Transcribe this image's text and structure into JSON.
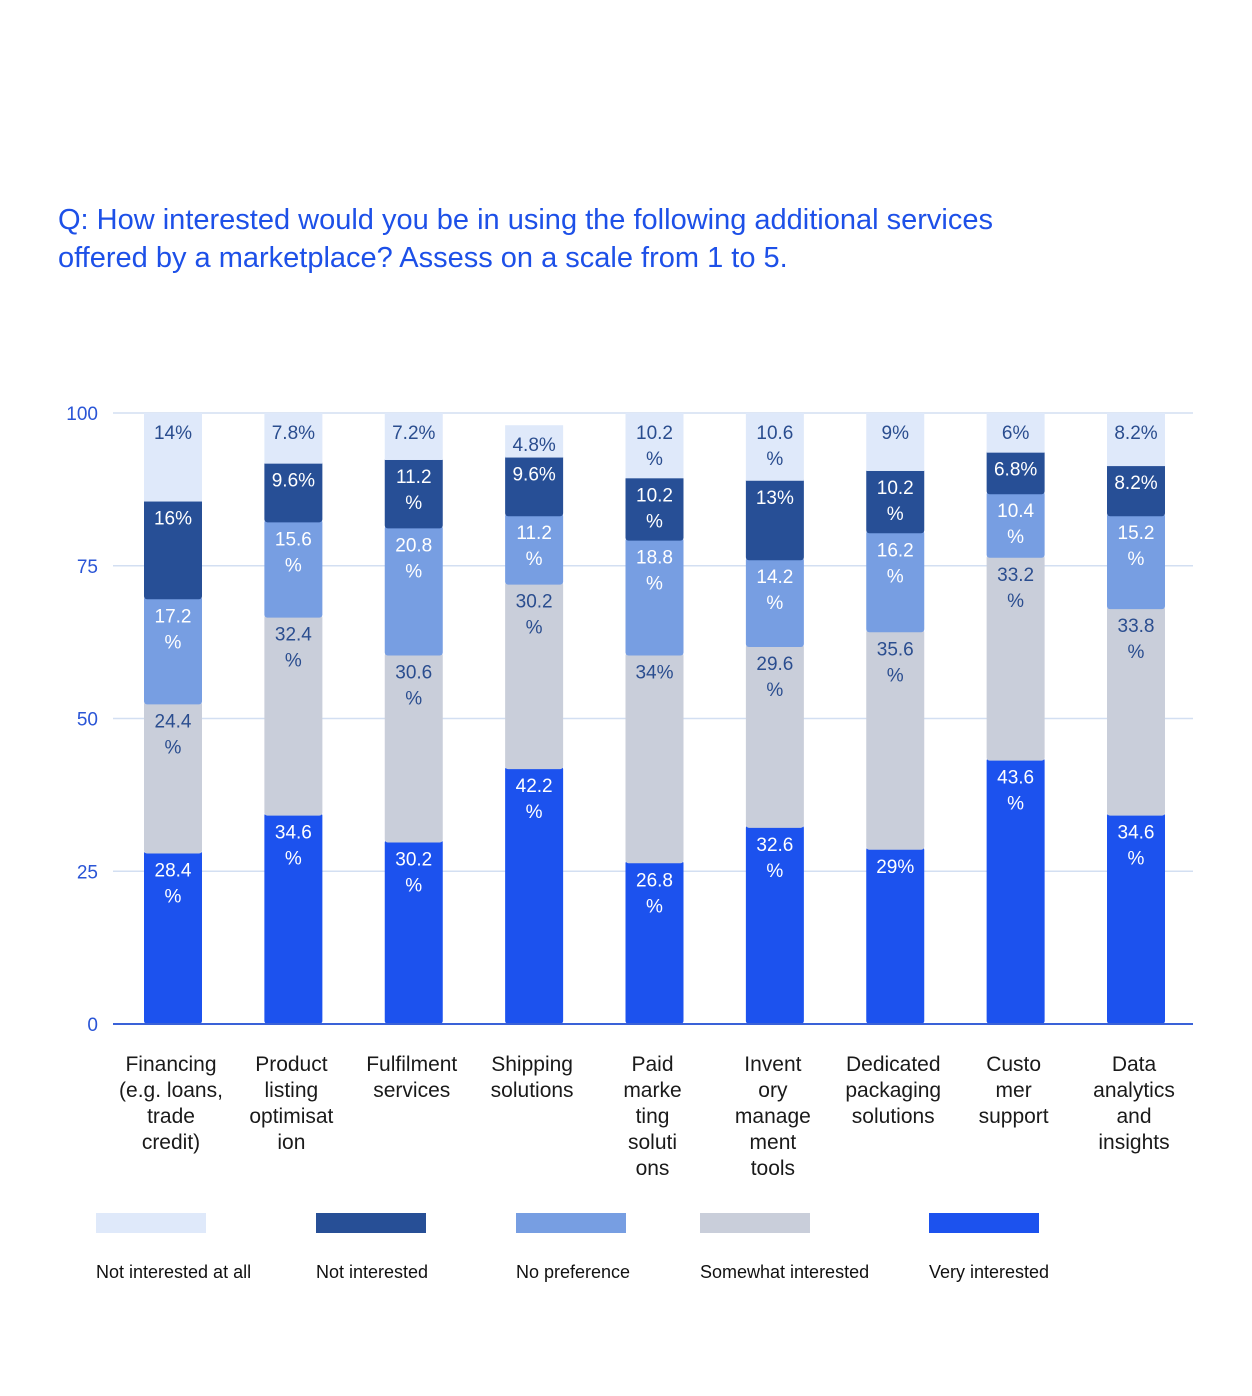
{
  "title": {
    "line1": "Q: How interested would you be in using the following additional services",
    "line2": "offered by a marketplace? Assess on a scale from 1 to 5."
  },
  "colors": {
    "title": "#1d50e8",
    "axis": "#3a62d8",
    "grid": "#d3dff2",
    "tick_label": "#2a55d6",
    "category_label": "#1a1a1a",
    "label_dark": "#2a4d8f",
    "label_light": "#ffffff"
  },
  "chart_data": {
    "type": "bar",
    "stacked": true,
    "title": "Q: How interested would you be in using the following additional services offered by a marketplace? Assess on a scale from 1 to 5.",
    "xlabel": "",
    "ylabel": "",
    "ylim": [
      0,
      100
    ],
    "yticks": [
      0,
      25,
      50,
      75,
      100
    ],
    "grid": true,
    "legend_position": "bottom",
    "categories": [
      [
        "Financing",
        "(e.g. loans,",
        "trade",
        "credit)"
      ],
      [
        "Product",
        "listing",
        "optimisat",
        "ion"
      ],
      [
        "Fulfilment",
        "services"
      ],
      [
        "Shipping",
        "solutions"
      ],
      [
        "Paid",
        "marke",
        "ting",
        "soluti",
        "ons"
      ],
      [
        "Invent",
        "ory",
        "manage",
        "ment",
        "tools"
      ],
      [
        "Dedicated",
        "packaging",
        "solutions"
      ],
      [
        "Custo",
        "mer",
        "support"
      ],
      [
        "Data",
        "analytics",
        "and",
        "insights"
      ]
    ],
    "series": [
      {
        "name": "Very interested",
        "color": "#1c52ee",
        "label_color": "#ffffff",
        "values": [
          28.4,
          34.6,
          30.2,
          42.2,
          26.8,
          32.6,
          29,
          43.6,
          34.6
        ],
        "labels": [
          [
            "28.4",
            "%"
          ],
          [
            "34.6",
            "%"
          ],
          [
            "30.2",
            "%"
          ],
          [
            "42.2",
            "%"
          ],
          [
            "26.8",
            "%"
          ],
          [
            "32.6",
            "%"
          ],
          [
            "29%"
          ],
          [
            "43.6",
            "%"
          ],
          [
            "34.6",
            "%"
          ]
        ]
      },
      {
        "name": "Somewhat interested",
        "color": "#c9ceda",
        "label_color": "#2a4d8f",
        "values": [
          24.4,
          32.4,
          30.6,
          30.2,
          34,
          29.6,
          35.6,
          33.2,
          33.8
        ],
        "labels": [
          [
            "24.4",
            "%"
          ],
          [
            "32.4",
            "%"
          ],
          [
            "30.6",
            "%"
          ],
          [
            "30.2",
            "%"
          ],
          [
            "34%"
          ],
          [
            "29.6",
            "%"
          ],
          [
            "35.6",
            "%"
          ],
          [
            "33.2",
            "%"
          ],
          [
            "33.8",
            "%"
          ]
        ]
      },
      {
        "name": "No preference",
        "color": "#779ee2",
        "label_color": "#ffffff",
        "values": [
          17.2,
          15.6,
          20.8,
          11.2,
          18.8,
          14.2,
          16.2,
          10.4,
          15.2
        ],
        "labels": [
          [
            "17.2",
            "%"
          ],
          [
            "15.6",
            "%"
          ],
          [
            "20.8",
            "%"
          ],
          [
            "11.2",
            "%"
          ],
          [
            "18.8",
            "%"
          ],
          [
            "14.2",
            "%"
          ],
          [
            "16.2",
            "%"
          ],
          [
            "10.4",
            "%"
          ],
          [
            "15.2",
            "%"
          ]
        ]
      },
      {
        "name": "Not interested",
        "color": "#274f96",
        "label_color": "#ffffff",
        "values": [
          16,
          9.6,
          11.2,
          9.6,
          10.2,
          13,
          10.2,
          6.8,
          8.2
        ],
        "labels": [
          [
            "16%"
          ],
          [
            "9.6%"
          ],
          [
            "11.2",
            "%"
          ],
          [
            "9.6%"
          ],
          [
            "10.2",
            "%"
          ],
          [
            "13%"
          ],
          [
            "10.2",
            "%"
          ],
          [
            "6.8%"
          ],
          [
            "8.2%"
          ]
        ]
      },
      {
        "name": "Not interested at all",
        "color": "#dfe9fa",
        "label_color": "#2a4d8f",
        "values": [
          14,
          7.8,
          7.2,
          4.8,
          10.2,
          10.6,
          9,
          6,
          8.2
        ],
        "labels": [
          [
            "14%"
          ],
          [
            "7.8%"
          ],
          [
            "7.2%"
          ],
          [
            "4.8%"
          ],
          [
            "10.2",
            "%"
          ],
          [
            "10.6",
            "%"
          ],
          [
            "9%"
          ],
          [
            "6%"
          ],
          [
            "8.2%"
          ]
        ]
      }
    ]
  },
  "legend": {
    "items": [
      {
        "label": "Not interested at all",
        "color": "#dfe9fa"
      },
      {
        "label": "Not interested",
        "color": "#274f96"
      },
      {
        "label": "No preference",
        "color": "#779ee2"
      },
      {
        "label": "Somewhat interested",
        "color": "#c9ceda"
      },
      {
        "label": "Very interested",
        "color": "#1c52ee"
      }
    ]
  }
}
